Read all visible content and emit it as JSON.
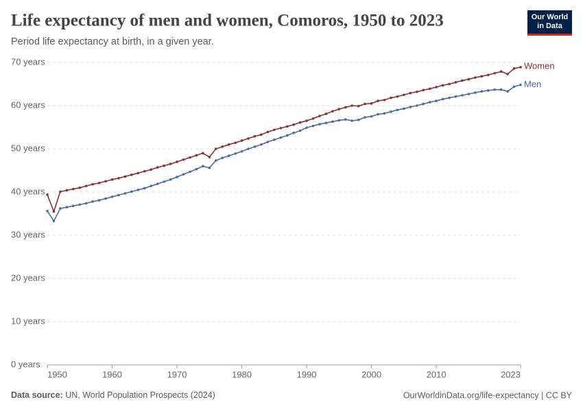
{
  "logo": "Our World in Data",
  "chart_data": {
    "type": "line",
    "title": "Life expectancy of men and women, Comoros, 1950 to 2023",
    "subtitle": "Period life expectancy at birth, in a given year.",
    "source_label": "Data source:",
    "source": "UN, World Population Prospects (2024)",
    "credit": "OurWorldinData.org/life-expectancy | CC BY",
    "x": [
      1950,
      1951,
      1952,
      1953,
      1954,
      1955,
      1956,
      1957,
      1958,
      1959,
      1960,
      1961,
      1962,
      1963,
      1964,
      1965,
      1966,
      1967,
      1968,
      1969,
      1970,
      1971,
      1972,
      1973,
      1974,
      1975,
      1976,
      1977,
      1978,
      1979,
      1980,
      1981,
      1982,
      1983,
      1984,
      1985,
      1986,
      1987,
      1988,
      1989,
      1990,
      1991,
      1992,
      1993,
      1994,
      1995,
      1996,
      1997,
      1998,
      1999,
      2000,
      2001,
      2002,
      2003,
      2004,
      2005,
      2006,
      2007,
      2008,
      2009,
      2010,
      2011,
      2012,
      2013,
      2014,
      2015,
      2016,
      2017,
      2018,
      2019,
      2020,
      2021,
      2022,
      2023
    ],
    "series": [
      {
        "name": "Women",
        "color": "#883039",
        "values": [
          39.4,
          35.5,
          40.1,
          40.4,
          40.7,
          41.0,
          41.4,
          41.8,
          42.1,
          42.5,
          42.9,
          43.2,
          43.6,
          44.0,
          44.4,
          44.8,
          45.2,
          45.7,
          46.1,
          46.5,
          47.0,
          47.5,
          48.0,
          48.5,
          49.0,
          48.1,
          50.0,
          50.5,
          51.0,
          51.4,
          51.9,
          52.4,
          52.9,
          53.3,
          53.9,
          54.4,
          54.8,
          55.2,
          55.6,
          56.1,
          56.5,
          57.0,
          57.6,
          58.1,
          58.7,
          59.2,
          59.6,
          60.0,
          59.9,
          60.4,
          60.5,
          61.1,
          61.3,
          61.8,
          62.1,
          62.5,
          62.9,
          63.2,
          63.6,
          63.9,
          64.3,
          64.7,
          65.0,
          65.4,
          65.8,
          66.1,
          66.5,
          66.8,
          67.1,
          67.5,
          67.9,
          67.3,
          68.6,
          68.9
        ]
      },
      {
        "name": "Men",
        "color": "#4c6a9c",
        "values": [
          35.6,
          33.3,
          36.2,
          36.5,
          36.8,
          37.1,
          37.4,
          37.8,
          38.1,
          38.5,
          38.9,
          39.3,
          39.7,
          40.1,
          40.5,
          40.9,
          41.4,
          41.9,
          42.4,
          42.9,
          43.5,
          44.1,
          44.7,
          45.3,
          46.0,
          45.6,
          47.3,
          47.9,
          48.4,
          48.9,
          49.4,
          50.0,
          50.5,
          51.0,
          51.6,
          52.1,
          52.6,
          53.1,
          53.7,
          54.2,
          54.9,
          55.3,
          55.7,
          56.0,
          56.3,
          56.6,
          56.8,
          56.5,
          56.7,
          57.3,
          57.5,
          58.0,
          58.2,
          58.6,
          59.0,
          59.3,
          59.7,
          60.0,
          60.4,
          60.8,
          61.1,
          61.5,
          61.8,
          62.1,
          62.4,
          62.7,
          63.0,
          63.3,
          63.5,
          63.7,
          63.7,
          63.3,
          64.4,
          64.8
        ]
      }
    ],
    "xlim": [
      1950,
      2023
    ],
    "xticks": [
      1950,
      1960,
      1970,
      1980,
      1990,
      2000,
      2010,
      2023
    ],
    "ylim": [
      0,
      70
    ],
    "yticks": [
      {
        "value": 0,
        "label": "0 years"
      },
      {
        "value": 10,
        "label": "10 years"
      },
      {
        "value": 20,
        "label": "20 years"
      },
      {
        "value": 30,
        "label": "30 years"
      },
      {
        "value": 40,
        "label": "40 years"
      },
      {
        "value": 50,
        "label": "50 years"
      },
      {
        "value": 60,
        "label": "60 years"
      },
      {
        "value": 70,
        "label": "70 years"
      }
    ],
    "grid": true
  }
}
